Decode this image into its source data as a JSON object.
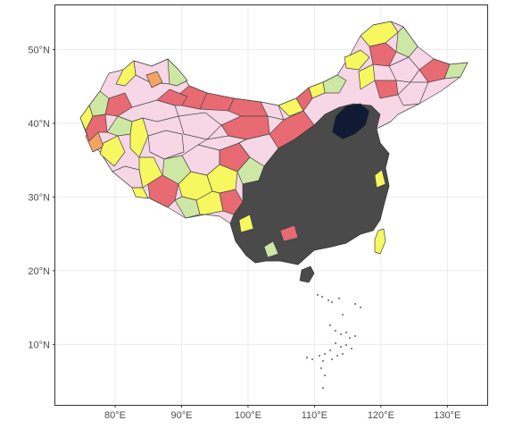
{
  "map": {
    "x_axis": {
      "ticks": [
        80,
        90,
        100,
        110,
        120,
        130
      ],
      "labels": [
        "80°E",
        "90°E",
        "100°E",
        "110°E",
        "120°E",
        "130°E"
      ],
      "lim": [
        71,
        136
      ]
    },
    "y_axis": {
      "ticks": [
        10,
        20,
        30,
        40,
        50
      ],
      "labels": [
        "10°N",
        "20°N",
        "30°N",
        "40°N",
        "50°N"
      ],
      "lim": [
        1.8,
        56
      ]
    },
    "grid": true,
    "theme": "bw",
    "fill_colors": {
      "pink": "#f7d6e6",
      "red": "#e86a72",
      "yellow": "#f7f760",
      "light_green": "#cde8a4",
      "orange": "#f4a460",
      "navy": "#111a33",
      "dense_gray": "#4a4a4a",
      "border": "#444444"
    }
  }
}
